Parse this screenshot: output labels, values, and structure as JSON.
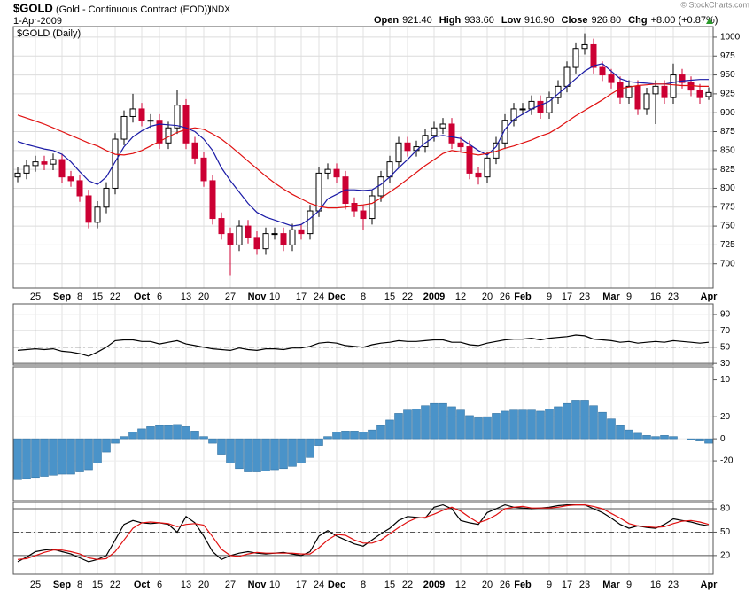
{
  "header": {
    "symbol": "$GOLD",
    "name": "(Gold - Continuous Contract (EOD))",
    "exchange": "INDX",
    "date": "1-Apr-2009",
    "credit": "© StockCharts.com",
    "quote": [
      {
        "label": "Open",
        "value": "921.40"
      },
      {
        "label": "High",
        "value": "933.60"
      },
      {
        "label": "Low",
        "value": "916.90"
      },
      {
        "label": "Close",
        "value": "926.80"
      },
      {
        "label": "Chg",
        "value": "+8.00 (+0.87%)"
      }
    ]
  },
  "chart_data": [
    {
      "type": "candlestick",
      "title": "$GOLD (Daily)",
      "up_color": "#000000",
      "down_color": "#cc0033",
      "grid": true,
      "categories": [
        null,
        null,
        "25",
        null,
        null,
        "Sep",
        null,
        "8",
        null,
        "15",
        null,
        "22",
        null,
        null,
        "Oct",
        null,
        "6",
        null,
        null,
        "13",
        null,
        "20",
        null,
        null,
        "27",
        null,
        null,
        "Nov",
        null,
        "10",
        null,
        null,
        "17",
        null,
        "24",
        null,
        "Dec",
        null,
        null,
        "8",
        null,
        null,
        "15",
        null,
        "22",
        null,
        null,
        "2009",
        null,
        null,
        "12",
        null,
        null,
        "20",
        null,
        "26",
        null,
        "Feb",
        null,
        null,
        "9",
        null,
        "17",
        null,
        "23",
        null,
        null,
        "Mar",
        null,
        "9",
        null,
        null,
        "16",
        null,
        "23",
        null,
        null,
        null,
        "Apr"
      ],
      "open": [
        815,
        820,
        830,
        835,
        832,
        838,
        815,
        810,
        790,
        755,
        775,
        800,
        865,
        895,
        905,
        890,
        890,
        860,
        880,
        910,
        860,
        840,
        810,
        760,
        740,
        725,
        750,
        735,
        720,
        740,
        740,
        725,
        745,
        740,
        770,
        820,
        825,
        815,
        780,
        770,
        760,
        790,
        815,
        835,
        860,
        850,
        855,
        870,
        880,
        885,
        860,
        855,
        820,
        815,
        840,
        860,
        890,
        905,
        905,
        915,
        900,
        920,
        935,
        960,
        985,
        990,
        960,
        950,
        940,
        920,
        935,
        905,
        925,
        935,
        920,
        950,
        940,
        930,
        921.4
      ],
      "high": [
        828,
        838,
        843,
        843,
        846,
        846,
        823,
        818,
        798,
        783,
        808,
        873,
        903,
        925,
        913,
        898,
        898,
        888,
        930,
        918,
        868,
        848,
        818,
        768,
        748,
        758,
        758,
        743,
        748,
        748,
        748,
        753,
        753,
        778,
        828,
        833,
        833,
        823,
        788,
        778,
        798,
        823,
        843,
        868,
        868,
        863,
        878,
        888,
        893,
        893,
        868,
        863,
        828,
        848,
        868,
        898,
        913,
        913,
        923,
        923,
        928,
        943,
        968,
        993,
        1005,
        998,
        968,
        958,
        948,
        943,
        943,
        933,
        943,
        943,
        965,
        958,
        948,
        938,
        933.6
      ],
      "low": [
        808,
        812,
        822,
        824,
        824,
        807,
        802,
        782,
        747,
        747,
        767,
        792,
        857,
        887,
        882,
        880,
        852,
        852,
        872,
        852,
        832,
        802,
        752,
        732,
        685,
        717,
        727,
        712,
        712,
        732,
        717,
        717,
        732,
        732,
        762,
        812,
        807,
        772,
        762,
        745,
        752,
        782,
        807,
        827,
        842,
        842,
        847,
        862,
        872,
        852,
        847,
        812,
        805,
        807,
        832,
        852,
        882,
        897,
        897,
        892,
        892,
        912,
        927,
        952,
        977,
        952,
        942,
        932,
        912,
        912,
        897,
        897,
        885,
        912,
        912,
        932,
        922,
        912,
        916.9
      ],
      "close": [
        820,
        830,
        835,
        832,
        838,
        815,
        810,
        790,
        755,
        775,
        800,
        865,
        895,
        905,
        890,
        890,
        860,
        880,
        910,
        860,
        840,
        810,
        760,
        740,
        725,
        750,
        735,
        720,
        740,
        740,
        725,
        745,
        740,
        770,
        820,
        825,
        815,
        780,
        770,
        760,
        790,
        815,
        835,
        860,
        850,
        855,
        870,
        880,
        885,
        860,
        855,
        820,
        815,
        840,
        860,
        890,
        905,
        905,
        915,
        900,
        920,
        935,
        960,
        985,
        990,
        960,
        950,
        940,
        920,
        935,
        905,
        925,
        935,
        920,
        950,
        940,
        930,
        920,
        926.8
      ],
      "series": [
        {
          "color": "#1a1aa6",
          "values": [
            862,
            858,
            855,
            852,
            850,
            845,
            835,
            822,
            810,
            805,
            815,
            835,
            855,
            868,
            876,
            882,
            885,
            884,
            883,
            880,
            875,
            865,
            850,
            827,
            810,
            795,
            780,
            768,
            762,
            758,
            754,
            750,
            752,
            760,
            770,
            786,
            792,
            798,
            798,
            797,
            798,
            805,
            815,
            827,
            838,
            850,
            860,
            868,
            870,
            868,
            866,
            858,
            850,
            844,
            855,
            878,
            891,
            898,
            905,
            910,
            915,
            925,
            935,
            945,
            955,
            962,
            965,
            955,
            945,
            941,
            940,
            939,
            938,
            938,
            940,
            942,
            943,
            944,
            944
          ]
        },
        {
          "color": "#e01010",
          "values": [
            897,
            893,
            889,
            885,
            880,
            875,
            870,
            865,
            860,
            856,
            850,
            845,
            844,
            846,
            850,
            856,
            862,
            868,
            874,
            878,
            880,
            878,
            872,
            865,
            856,
            846,
            836,
            826,
            816,
            807,
            799,
            792,
            786,
            780,
            776,
            774,
            774,
            775,
            777,
            778,
            780,
            787,
            795,
            803,
            812,
            821,
            830,
            838,
            846,
            850,
            848,
            846,
            844,
            846,
            849,
            853,
            856,
            860,
            864,
            869,
            873,
            880,
            888,
            896,
            903,
            910,
            917,
            925,
            932,
            934,
            936,
            937,
            938,
            938,
            937,
            936,
            936,
            935,
            935
          ]
        }
      ],
      "ylim": [
        668,
        1014
      ],
      "yticks": [
        1000,
        975,
        950,
        925,
        900,
        875,
        850,
        825,
        800,
        775,
        750,
        725,
        700
      ]
    },
    {
      "type": "line",
      "ylim": [
        28,
        103
      ],
      "yticks": [
        90,
        70,
        50,
        30,
        10
      ],
      "reference_lines": [
        {
          "value": 70
        },
        {
          "value": 50,
          "dashed": true
        },
        {
          "value": 30
        }
      ],
      "series": [
        {
          "color": "#000000",
          "values": [
            46,
            47,
            48,
            47,
            48,
            45,
            44,
            42,
            39,
            44,
            50,
            58,
            59,
            59,
            57,
            57,
            54,
            56,
            58,
            54,
            52,
            50,
            48,
            47,
            46,
            49,
            47,
            46,
            48,
            48,
            47,
            49,
            49,
            51,
            55,
            56,
            55,
            52,
            51,
            50,
            53,
            55,
            56,
            58,
            57,
            57,
            58,
            59,
            59,
            56,
            56,
            53,
            52,
            55,
            57,
            59,
            60,
            60,
            61,
            59,
            61,
            62,
            63,
            65,
            64,
            60,
            59,
            58,
            56,
            57,
            55,
            56,
            57,
            56,
            58,
            57,
            56,
            55,
            56
          ]
        }
      ]
    },
    {
      "type": "bar",
      "color": "#4a93c9",
      "ylim": [
        -56,
        65
      ],
      "yticks": [
        20,
        0,
        -20
      ],
      "values": [
        -37,
        -36,
        -35,
        -34,
        -33,
        -32,
        -32,
        -30,
        -28,
        -22,
        -12,
        -4,
        2,
        6,
        9,
        11,
        12,
        12,
        13,
        11,
        7,
        2,
        -4,
        -14,
        -22,
        -27,
        -30,
        -30,
        -29,
        -28,
        -27,
        -25,
        -22,
        -17,
        -6,
        2,
        6,
        7,
        7,
        6,
        8,
        12,
        17,
        23,
        26,
        27,
        30,
        32,
        32,
        29,
        26,
        21,
        19,
        20,
        23,
        25,
        26,
        26,
        26,
        25,
        27,
        29,
        32,
        35,
        35,
        30,
        24,
        18,
        12,
        8,
        5,
        3,
        2,
        3,
        2,
        0,
        -1,
        -2,
        -4
      ]
    },
    {
      "type": "line",
      "ylim": [
        -4,
        88
      ],
      "yticks": [
        80,
        50,
        20
      ],
      "reference_lines": [
        {
          "value": 80
        },
        {
          "value": 50,
          "dashed": true
        },
        {
          "value": 20
        }
      ],
      "categories": [
        null,
        null,
        "25",
        null,
        null,
        "Sep",
        null,
        "8",
        null,
        "15",
        null,
        "22",
        null,
        null,
        "Oct",
        null,
        "6",
        null,
        null,
        "13",
        null,
        "20",
        null,
        null,
        "27",
        null,
        null,
        "Nov",
        null,
        "10",
        null,
        null,
        "17",
        null,
        "24",
        null,
        "Dec",
        null,
        null,
        "8",
        null,
        null,
        "15",
        null,
        "22",
        null,
        null,
        "2009",
        null,
        null,
        "12",
        null,
        null,
        "20",
        null,
        "26",
        null,
        "Feb",
        null,
        null,
        "9",
        null,
        "17",
        null,
        "23",
        null,
        null,
        "Mar",
        null,
        "9",
        null,
        null,
        "16",
        null,
        "23",
        null,
        null,
        null,
        "Apr"
      ],
      "series": [
        {
          "color": "#000000",
          "values": [
            12,
            18,
            25,
            27,
            28,
            25,
            22,
            17,
            12,
            15,
            20,
            40,
            60,
            65,
            62,
            61,
            62,
            60,
            50,
            70,
            62,
            45,
            25,
            15,
            20,
            23,
            25,
            23,
            22,
            23,
            24,
            22,
            20,
            25,
            45,
            52,
            45,
            40,
            35,
            32,
            40,
            48,
            55,
            65,
            70,
            69,
            68,
            82,
            85,
            80,
            65,
            62,
            60,
            75,
            80,
            85,
            82,
            81,
            80,
            81,
            82,
            84,
            85,
            85,
            85,
            80,
            75,
            68,
            60,
            55,
            58,
            56,
            55,
            60,
            67,
            65,
            63,
            60,
            58
          ]
        },
        {
          "color": "#e01010",
          "values": [
            15,
            16,
            20,
            24,
            27,
            27,
            25,
            22,
            17,
            15,
            16,
            25,
            40,
            55,
            62,
            63,
            62,
            61,
            57,
            60,
            61,
            59,
            44,
            28,
            20,
            19,
            22,
            24,
            23,
            23,
            23,
            23,
            22,
            22,
            30,
            40,
            47,
            46,
            40,
            36,
            36,
            40,
            48,
            56,
            63,
            68,
            69,
            73,
            78,
            82,
            77,
            69,
            62,
            66,
            72,
            80,
            82,
            83,
            81,
            81,
            81,
            82,
            84,
            85,
            85,
            83,
            80,
            74,
            68,
            61,
            58,
            57,
            56,
            57,
            61,
            64,
            65,
            63,
            60
          ]
        }
      ]
    }
  ]
}
